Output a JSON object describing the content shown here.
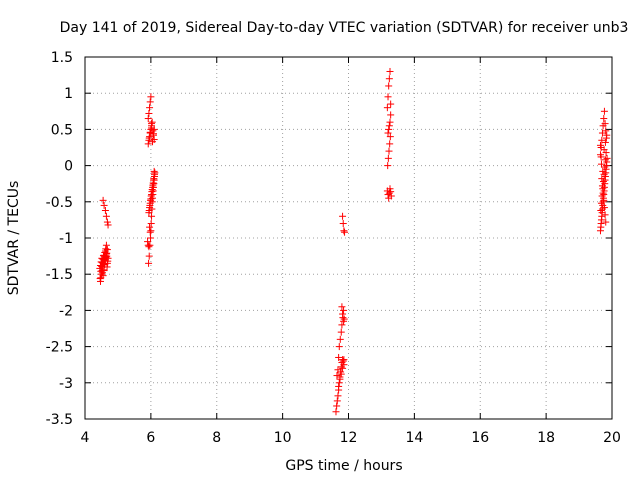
{
  "chart_data": {
    "type": "scatter",
    "title": "Day 141 of 2019, Sidereal Day-to-day VTEC variation (SDTVAR) for receiver unb3",
    "xlabel": "GPS time / hours",
    "ylabel": "SDTVAR / TECUs",
    "xlim": [
      4,
      20
    ],
    "ylim": [
      -3.5,
      1.5
    ],
    "xticks": [
      4,
      6,
      8,
      10,
      12,
      14,
      16,
      18,
      20
    ],
    "xtick_labels": [
      "4",
      "6",
      "8",
      "10",
      "12",
      "14",
      "16",
      "18",
      "20"
    ],
    "yticks": [
      1.5,
      1,
      0.5,
      0,
      -0.5,
      -1,
      -1.5,
      -2,
      -2.5,
      -3,
      -3.5
    ],
    "ytick_labels": [
      "1.5",
      "1",
      "0.5",
      "0",
      "-0.5",
      "-1",
      "-1.5",
      "-2",
      "-2.5",
      "-3",
      "-3.5"
    ],
    "grid": true,
    "marker": "+",
    "color": "#ff0000",
    "series": [
      {
        "name": "SDTVAR",
        "x": [
          4.47,
          4.48,
          4.5,
          4.52,
          4.53,
          4.55,
          4.57,
          4.58,
          4.6,
          4.62,
          4.63,
          4.65,
          4.66,
          4.68,
          4.45,
          4.47,
          4.49,
          4.51,
          4.53,
          4.55,
          4.57,
          4.59,
          4.61,
          4.63,
          4.65,
          4.67,
          4.69,
          4.46,
          4.48,
          4.5,
          4.52,
          4.54,
          4.56,
          4.58,
          4.6,
          4.62,
          4.64,
          4.66,
          4.68,
          4.7,
          4.55,
          4.58,
          4.62,
          4.65,
          4.68,
          4.7,
          5.93,
          5.95,
          5.97,
          5.99,
          6.0,
          6.01,
          6.02,
          6.03,
          6.04,
          6.05,
          6.06,
          6.07,
          6.08,
          6.09,
          6.1,
          6.11,
          6.12,
          5.94,
          5.96,
          5.98,
          6.0,
          6.02,
          6.04,
          6.06,
          6.08,
          6.1,
          5.95,
          5.97,
          5.99,
          6.01,
          6.03,
          6.05,
          6.07,
          6.09,
          6.11,
          5.92,
          5.94,
          5.96,
          5.98,
          6.0,
          6.02,
          6.04,
          6.06,
          6.08,
          6.1,
          5.92,
          5.94,
          5.96,
          5.98,
          6.0,
          6.02,
          5.9,
          5.92,
          5.94,
          5.96,
          5.98,
          5.95,
          5.98,
          6.02,
          6.05,
          6.08,
          6.1,
          11.62,
          11.64,
          11.66,
          11.68,
          11.7,
          11.72,
          11.74,
          11.76,
          11.78,
          11.8,
          11.82,
          11.84,
          11.86,
          11.65,
          11.68,
          11.7,
          11.72,
          11.75,
          11.78,
          11.8,
          11.83,
          11.85,
          11.7,
          11.74,
          11.78,
          11.82,
          11.86,
          11.8,
          11.82,
          11.85,
          11.87,
          11.82,
          11.84,
          11.86,
          11.88,
          13.18,
          13.2,
          13.22,
          13.24,
          13.26,
          13.28,
          13.3,
          13.19,
          13.21,
          13.23,
          13.25,
          13.27,
          13.2,
          13.22,
          13.24,
          13.26,
          13.28,
          13.18,
          13.2,
          13.22,
          13.24,
          13.26,
          13.28,
          19.65,
          19.67,
          19.69,
          19.71,
          19.73,
          19.75,
          19.77,
          19.79,
          19.81,
          19.83,
          19.85,
          19.66,
          19.68,
          19.7,
          19.72,
          19.74,
          19.76,
          19.78,
          19.8,
          19.82,
          19.84,
          19.65,
          19.67,
          19.69,
          19.71,
          19.73,
          19.75,
          19.77,
          19.79,
          19.81,
          19.83,
          19.66,
          19.68,
          19.7,
          19.72,
          19.74,
          19.76,
          19.78,
          19.8,
          19.82,
          19.65,
          19.67,
          19.69,
          19.71,
          19.73,
          19.75,
          19.77,
          19.79,
          19.81,
          19.68,
          19.72,
          19.76,
          19.8,
          19.84
        ],
        "y": [
          -1.6,
          -1.55,
          -1.5,
          -1.45,
          -1.4,
          -1.35,
          -1.3,
          -1.25,
          -1.2,
          -1.18,
          -1.15,
          -1.1,
          -1.25,
          -1.35,
          -1.42,
          -1.38,
          -1.33,
          -1.28,
          -1.48,
          -1.52,
          -1.44,
          -1.36,
          -1.31,
          -1.27,
          -1.22,
          -1.4,
          -1.32,
          -1.56,
          -1.46,
          -1.39,
          -1.34,
          -1.29,
          -1.24,
          -1.45,
          -1.37,
          -1.3,
          -1.26,
          -1.21,
          -1.16,
          -1.28,
          -0.48,
          -0.55,
          -0.62,
          -0.7,
          -0.78,
          -0.82,
          -1.35,
          -1.25,
          -1.1,
          -1.0,
          -0.9,
          -0.8,
          -0.7,
          -0.6,
          -0.5,
          -0.45,
          -0.4,
          -0.35,
          -0.3,
          -0.25,
          -0.2,
          -0.15,
          -0.1,
          -0.65,
          -0.58,
          -0.52,
          -0.46,
          -0.4,
          -0.33,
          -0.27,
          -0.2,
          -0.08,
          -0.62,
          -0.55,
          -0.48,
          -0.42,
          -0.36,
          -0.3,
          -0.24,
          -0.18,
          -0.12,
          0.3,
          0.35,
          0.4,
          0.45,
          0.5,
          0.55,
          0.6,
          0.48,
          0.42,
          0.36,
          0.65,
          0.72,
          0.8,
          0.88,
          0.95,
          0.52,
          -1.05,
          -1.1,
          -1.12,
          -0.85,
          -0.92,
          0.38,
          0.46,
          0.58,
          0.33,
          0.44,
          0.5,
          -3.4,
          -3.32,
          -3.25,
          -3.18,
          -3.1,
          -3.0,
          -2.92,
          -2.85,
          -2.78,
          -2.72,
          -2.68,
          -2.7,
          -2.75,
          -2.9,
          -2.82,
          -2.65,
          -2.5,
          -2.4,
          -2.3,
          -2.2,
          -2.1,
          -2.0,
          -3.05,
          -2.95,
          -2.88,
          -2.8,
          -2.68,
          -1.95,
          -2.05,
          -2.15,
          -2.12,
          -0.7,
          -0.8,
          -0.9,
          -0.92,
          -0.35,
          -0.4,
          -0.45,
          -0.38,
          -0.32,
          -0.36,
          -0.42,
          0.0,
          0.1,
          0.2,
          0.3,
          0.4,
          0.45,
          0.5,
          0.55,
          0.6,
          0.7,
          0.8,
          0.95,
          1.1,
          1.2,
          1.3,
          0.85,
          -0.9,
          -0.8,
          -0.7,
          -0.6,
          -0.5,
          -0.4,
          -0.3,
          -0.2,
          -0.1,
          0.0,
          0.1,
          -0.85,
          -0.75,
          -0.65,
          -0.55,
          -0.45,
          -0.35,
          -0.25,
          -0.15,
          -0.05,
          0.05,
          0.15,
          0.25,
          0.35,
          0.45,
          0.55,
          0.65,
          0.75,
          0.58,
          0.48,
          0.38,
          -0.62,
          -0.52,
          -0.42,
          -0.32,
          -0.22,
          -0.12,
          -0.02,
          0.08,
          0.18,
          0.28,
          0.12,
          -0.18,
          -0.28,
          -0.38,
          -0.48,
          -0.58,
          -0.68,
          -0.78,
          0.02,
          -0.08,
          0.22,
          0.32,
          0.42
        ]
      }
    ]
  }
}
